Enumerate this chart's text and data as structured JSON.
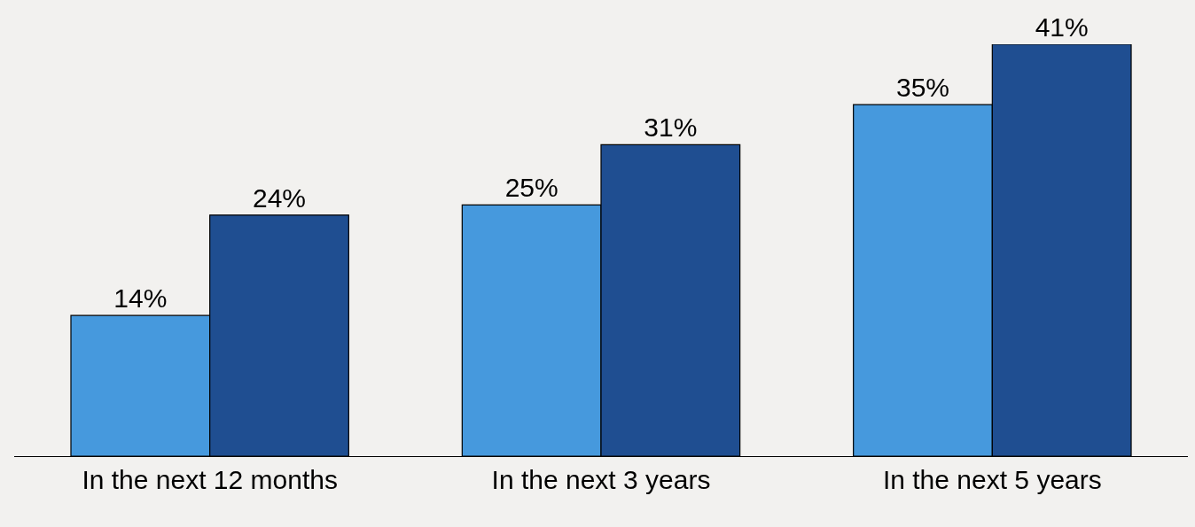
{
  "chart_data": {
    "type": "bar",
    "categories": [
      "In the next 12 months",
      "In the next 3 years",
      "In the next 5 years"
    ],
    "series": [
      {
        "color": "#4699dd",
        "values": [
          14,
          25,
          35
        ],
        "value_labels": [
          "14%",
          "25%",
          "35%"
        ]
      },
      {
        "color": "#1f4e91",
        "values": [
          24,
          31,
          41
        ],
        "value_labels": [
          "24%",
          "31%",
          "41%"
        ]
      }
    ],
    "legend": false,
    "grid": false
  }
}
